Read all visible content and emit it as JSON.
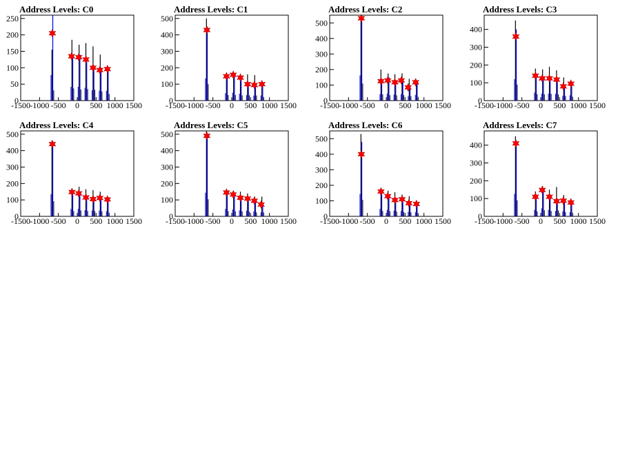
{
  "chart_data": [
    {
      "type": "histogram",
      "title": "Address Levels: C0",
      "xlim": [
        -1500,
        1500
      ],
      "ylim": [
        0,
        260
      ],
      "xticks": [
        -1500,
        -1000,
        -500,
        0,
        500,
        1000,
        1500
      ],
      "yticks": [
        0,
        50,
        100,
        150,
        200,
        250
      ],
      "peaks": [
        {
          "x": -660,
          "black": 155,
          "blue": 260
        },
        {
          "x": -130,
          "black": 185,
          "blue": 140
        },
        {
          "x": 60,
          "black": 170,
          "blue": 140
        },
        {
          "x": 240,
          "black": 175,
          "blue": 130
        },
        {
          "x": 430,
          "black": 165,
          "blue": 105
        },
        {
          "x": 620,
          "black": 140,
          "blue": 100
        },
        {
          "x": 810,
          "black": 100,
          "blue": 100
        }
      ],
      "markers": [
        {
          "x": -660,
          "y": 205
        },
        {
          "x": -150,
          "y": 135
        },
        {
          "x": 40,
          "y": 132
        },
        {
          "x": 230,
          "y": 125
        },
        {
          "x": 420,
          "y": 100
        },
        {
          "x": 600,
          "y": 93
        },
        {
          "x": 800,
          "y": 96
        }
      ]
    },
    {
      "type": "histogram",
      "title": "Address Levels: C1",
      "xlim": [
        -1500,
        1500
      ],
      "ylim": [
        0,
        520
      ],
      "xticks": [
        -1500,
        -1000,
        -500,
        0,
        500,
        1000,
        1500
      ],
      "yticks": [
        0,
        100,
        200,
        300,
        400,
        500
      ],
      "peaks": [
        {
          "x": -660,
          "black": 500,
          "blue": 450
        },
        {
          "x": -130,
          "black": 170,
          "blue": 150
        },
        {
          "x": 60,
          "black": 170,
          "blue": 160
        },
        {
          "x": 240,
          "black": 160,
          "blue": 140
        },
        {
          "x": 430,
          "black": 160,
          "blue": 110
        },
        {
          "x": 620,
          "black": 155,
          "blue": 100
        },
        {
          "x": 810,
          "black": 110,
          "blue": 105
        }
      ],
      "markers": [
        {
          "x": -660,
          "y": 430
        },
        {
          "x": -140,
          "y": 148
        },
        {
          "x": 40,
          "y": 157
        },
        {
          "x": 230,
          "y": 140
        },
        {
          "x": 420,
          "y": 100
        },
        {
          "x": 600,
          "y": 95
        },
        {
          "x": 800,
          "y": 100
        }
      ]
    },
    {
      "type": "histogram",
      "title": "Address Levels: C2",
      "xlim": [
        -1500,
        1500
      ],
      "ylim": [
        0,
        550
      ],
      "xticks": [
        -1500,
        -1000,
        -500,
        0,
        500,
        1000,
        1500
      ],
      "yticks": [
        0,
        100,
        200,
        300,
        400,
        500
      ],
      "peaks": [
        {
          "x": -660,
          "black": 550,
          "blue": 540
        },
        {
          "x": -130,
          "black": 200,
          "blue": 140
        },
        {
          "x": 60,
          "black": 175,
          "blue": 150
        },
        {
          "x": 240,
          "black": 170,
          "blue": 130
        },
        {
          "x": 430,
          "black": 175,
          "blue": 140
        },
        {
          "x": 620,
          "black": 140,
          "blue": 95
        },
        {
          "x": 810,
          "black": 120,
          "blue": 125
        }
      ],
      "markers": [
        {
          "x": -660,
          "y": 530
        },
        {
          "x": -140,
          "y": 125
        },
        {
          "x": 40,
          "y": 130
        },
        {
          "x": 230,
          "y": 118
        },
        {
          "x": 400,
          "y": 130
        },
        {
          "x": 580,
          "y": 85
        },
        {
          "x": 780,
          "y": 118
        }
      ]
    },
    {
      "type": "histogram",
      "title": "Address Levels: C3",
      "xlim": [
        -1500,
        1500
      ],
      "ylim": [
        0,
        480
      ],
      "xticks": [
        -1500,
        -1000,
        -500,
        0,
        500,
        1000,
        1500
      ],
      "yticks": [
        0,
        100,
        200,
        300,
        400
      ],
      "peaks": [
        {
          "x": -660,
          "black": 450,
          "blue": 400
        },
        {
          "x": -130,
          "black": 180,
          "blue": 150
        },
        {
          "x": 60,
          "black": 175,
          "blue": 130
        },
        {
          "x": 240,
          "black": 190,
          "blue": 130
        },
        {
          "x": 430,
          "black": 170,
          "blue": 125
        },
        {
          "x": 620,
          "black": 130,
          "blue": 90
        },
        {
          "x": 810,
          "black": 110,
          "blue": 100
        }
      ],
      "markers": [
        {
          "x": -660,
          "y": 360
        },
        {
          "x": -140,
          "y": 140
        },
        {
          "x": 40,
          "y": 125
        },
        {
          "x": 230,
          "y": 125
        },
        {
          "x": 420,
          "y": 118
        },
        {
          "x": 600,
          "y": 80
        },
        {
          "x": 800,
          "y": 95
        }
      ]
    },
    {
      "type": "histogram",
      "title": "Address Levels: C4",
      "xlim": [
        -1500,
        1500
      ],
      "ylim": [
        0,
        520
      ],
      "xticks": [
        -1500,
        -1000,
        -500,
        0,
        500,
        1000,
        1500
      ],
      "yticks": [
        0,
        100,
        200,
        300,
        400,
        500
      ],
      "peaks": [
        {
          "x": -660,
          "black": 460,
          "blue": 450
        },
        {
          "x": -130,
          "black": 160,
          "blue": 150
        },
        {
          "x": 60,
          "black": 180,
          "blue": 150
        },
        {
          "x": 240,
          "black": 165,
          "blue": 125
        },
        {
          "x": 430,
          "black": 160,
          "blue": 120
        },
        {
          "x": 620,
          "black": 150,
          "blue": 115
        },
        {
          "x": 810,
          "black": 110,
          "blue": 105
        }
      ],
      "markers": [
        {
          "x": -660,
          "y": 440
        },
        {
          "x": -140,
          "y": 148
        },
        {
          "x": 40,
          "y": 140
        },
        {
          "x": 230,
          "y": 115
        },
        {
          "x": 420,
          "y": 105
        },
        {
          "x": 600,
          "y": 112
        },
        {
          "x": 800,
          "y": 103
        }
      ]
    },
    {
      "type": "histogram",
      "title": "Address Levels: C5",
      "xlim": [
        -1500,
        1500
      ],
      "ylim": [
        0,
        520
      ],
      "xticks": [
        -1500,
        -1000,
        -500,
        0,
        500,
        1000,
        1500
      ],
      "yticks": [
        0,
        100,
        200,
        300,
        400,
        500
      ],
      "peaks": [
        {
          "x": -660,
          "black": 520,
          "blue": 480
        },
        {
          "x": -130,
          "black": 160,
          "blue": 150
        },
        {
          "x": 60,
          "black": 155,
          "blue": 140
        },
        {
          "x": 240,
          "black": 150,
          "blue": 120
        },
        {
          "x": 430,
          "black": 140,
          "blue": 115
        },
        {
          "x": 620,
          "black": 120,
          "blue": 100
        },
        {
          "x": 810,
          "black": 120,
          "blue": 80
        }
      ],
      "markers": [
        {
          "x": -660,
          "y": 490
        },
        {
          "x": -140,
          "y": 145
        },
        {
          "x": 40,
          "y": 133
        },
        {
          "x": 230,
          "y": 113
        },
        {
          "x": 420,
          "y": 108
        },
        {
          "x": 600,
          "y": 95
        },
        {
          "x": 780,
          "y": 72
        }
      ]
    },
    {
      "type": "histogram",
      "title": "Address Levels: C6",
      "xlim": [
        -1500,
        1500
      ],
      "ylim": [
        0,
        550
      ],
      "xticks": [
        -1500,
        -1000,
        -500,
        0,
        500,
        1000,
        1500
      ],
      "yticks": [
        0,
        100,
        200,
        300,
        400,
        500
      ],
      "peaks": [
        {
          "x": -660,
          "black": 530,
          "blue": 480
        },
        {
          "x": -130,
          "black": 170,
          "blue": 160
        },
        {
          "x": 60,
          "black": 165,
          "blue": 140
        },
        {
          "x": 240,
          "black": 155,
          "blue": 120
        },
        {
          "x": 430,
          "black": 140,
          "blue": 115
        },
        {
          "x": 620,
          "black": 130,
          "blue": 95
        },
        {
          "x": 810,
          "black": 100,
          "blue": 90
        }
      ],
      "markers": [
        {
          "x": -660,
          "y": 400
        },
        {
          "x": -140,
          "y": 160
        },
        {
          "x": 40,
          "y": 130
        },
        {
          "x": 230,
          "y": 105
        },
        {
          "x": 420,
          "y": 110
        },
        {
          "x": 600,
          "y": 85
        },
        {
          "x": 800,
          "y": 80
        }
      ]
    },
    {
      "type": "histogram",
      "title": "Address Levels: C7",
      "xlim": [
        -1500,
        1500
      ],
      "ylim": [
        0,
        480
      ],
      "xticks": [
        -1500,
        -1000,
        -500,
        0,
        500,
        1000,
        1500
      ],
      "yticks": [
        0,
        100,
        200,
        300,
        400
      ],
      "peaks": [
        {
          "x": -660,
          "black": 450,
          "blue": 420
        },
        {
          "x": -130,
          "black": 140,
          "blue": 120
        },
        {
          "x": 60,
          "black": 170,
          "blue": 150
        },
        {
          "x": 240,
          "black": 150,
          "blue": 120
        },
        {
          "x": 430,
          "black": 165,
          "blue": 100
        },
        {
          "x": 620,
          "black": 120,
          "blue": 95
        },
        {
          "x": 810,
          "black": 100,
          "blue": 80
        }
      ],
      "markers": [
        {
          "x": -660,
          "y": 410
        },
        {
          "x": -140,
          "y": 110
        },
        {
          "x": 40,
          "y": 148
        },
        {
          "x": 230,
          "y": 110
        },
        {
          "x": 420,
          "y": 85
        },
        {
          "x": 600,
          "y": 88
        },
        {
          "x": 800,
          "y": 78
        }
      ]
    }
  ],
  "colors": {
    "black_histogram": "#000000",
    "blue_histogram": "#0000ff",
    "marker_fill": "#ff0000",
    "marker_stroke": "#b00000",
    "background": "#ffffff"
  }
}
